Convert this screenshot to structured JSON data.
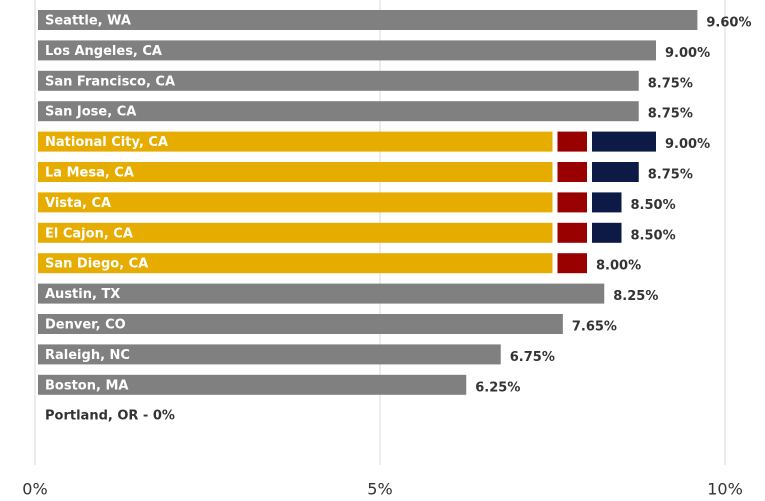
{
  "chart_data": {
    "type": "stacked-barh",
    "categories": [
      "Seattle, WA",
      "Los Angeles, CA",
      "San Francisco, CA",
      "San Jose, CA",
      "National City, CA",
      "La Mesa, CA",
      "Vista, CA",
      "El Cajon, CA",
      "San Diego, CA",
      "Austin, TX",
      "Denver, CO",
      "Raleigh, NC",
      "Boston, MA",
      "Portland, OR - 0%"
    ],
    "series": [
      {
        "color": "#808080",
        "values": [
          9.6,
          9.0,
          8.75,
          8.75,
          null,
          null,
          null,
          null,
          null,
          8.25,
          7.65,
          6.75,
          6.25,
          0
        ]
      },
      {
        "color": "#e6ac00",
        "values": [
          null,
          null,
          null,
          null,
          7.5,
          7.5,
          7.5,
          7.5,
          7.5,
          null,
          null,
          null,
          null,
          null
        ]
      },
      {
        "color": "#990000",
        "values": [
          null,
          null,
          null,
          null,
          0.5,
          0.5,
          0.5,
          0.5,
          0.5,
          null,
          null,
          null,
          null,
          null
        ]
      },
      {
        "color": "#0c1a45",
        "values": [
          null,
          null,
          null,
          null,
          1.0,
          0.75,
          0.5,
          0.5,
          0,
          null,
          null,
          null,
          null,
          null
        ]
      }
    ],
    "totals": [
      9.6,
      9.0,
      8.75,
      8.75,
      9.0,
      8.75,
      8.5,
      8.5,
      8.0,
      8.25,
      7.65,
      6.75,
      6.25,
      0
    ],
    "total_labels": [
      "9.60%",
      "9.00%",
      "8.75%",
      "8.75%",
      "9.00%",
      "8.75%",
      "8.50%",
      "8.50%",
      "8.00%",
      "8.25%",
      "7.65%",
      "6.75%",
      "6.25%",
      null
    ],
    "xlim": [
      0,
      10
    ],
    "xticks": [
      {
        "value": 0,
        "label": "0%"
      },
      {
        "value": 5,
        "label": "5%"
      },
      {
        "value": 10,
        "label": "10%"
      }
    ],
    "grid": true
  }
}
